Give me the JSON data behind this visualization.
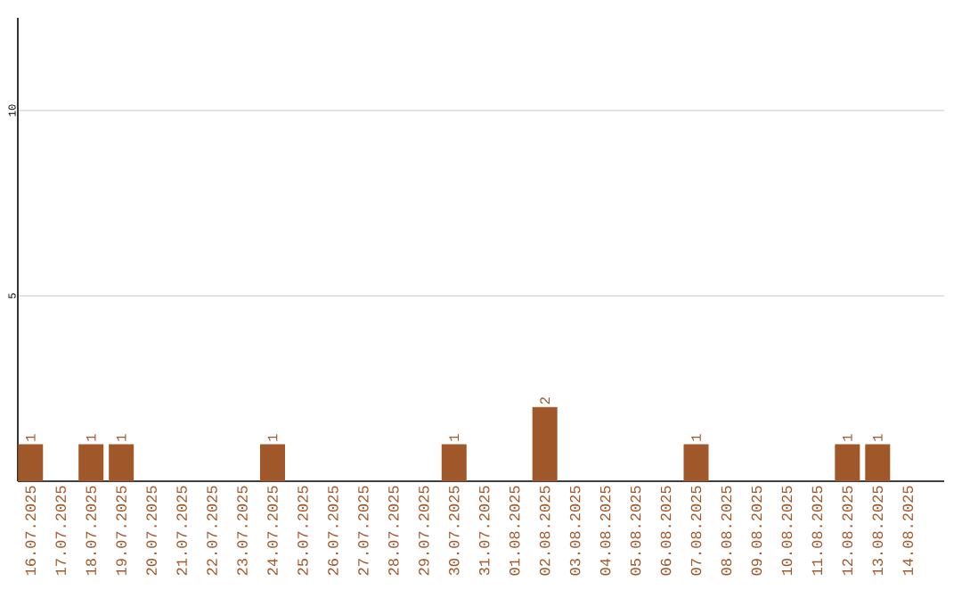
{
  "chart_data": {
    "type": "bar",
    "categories": [
      "16.07.2025",
      "17.07.2025",
      "18.07.2025",
      "19.07.2025",
      "20.07.2025",
      "21.07.2025",
      "22.07.2025",
      "23.07.2025",
      "24.07.2025",
      "25.07.2025",
      "26.07.2025",
      "27.07.2025",
      "28.07.2025",
      "29.07.2025",
      "30.07.2025",
      "31.07.2025",
      "01.08.2025",
      "02.08.2025",
      "03.08.2025",
      "04.08.2025",
      "05.08.2025",
      "06.08.2025",
      "07.08.2025",
      "08.08.2025",
      "09.08.2025",
      "10.08.2025",
      "11.08.2025",
      "12.08.2025",
      "13.08.2025",
      "14.08.2025"
    ],
    "values": [
      1,
      0,
      1,
      1,
      0,
      0,
      0,
      0,
      1,
      0,
      0,
      0,
      0,
      0,
      1,
      0,
      0,
      2,
      0,
      0,
      0,
      0,
      1,
      0,
      0,
      0,
      0,
      1,
      1,
      0
    ],
    "value_labels": [
      "1",
      null,
      "1",
      "1",
      null,
      null,
      null,
      null,
      "1",
      null,
      null,
      null,
      null,
      null,
      "1",
      null,
      null,
      "2",
      null,
      null,
      null,
      null,
      "1",
      null,
      null,
      null,
      null,
      "1",
      "1",
      null
    ],
    "color": "#a0582a",
    "ylim": [
      0,
      12.5
    ],
    "yticks": [
      5,
      10
    ],
    "grid": "y"
  }
}
